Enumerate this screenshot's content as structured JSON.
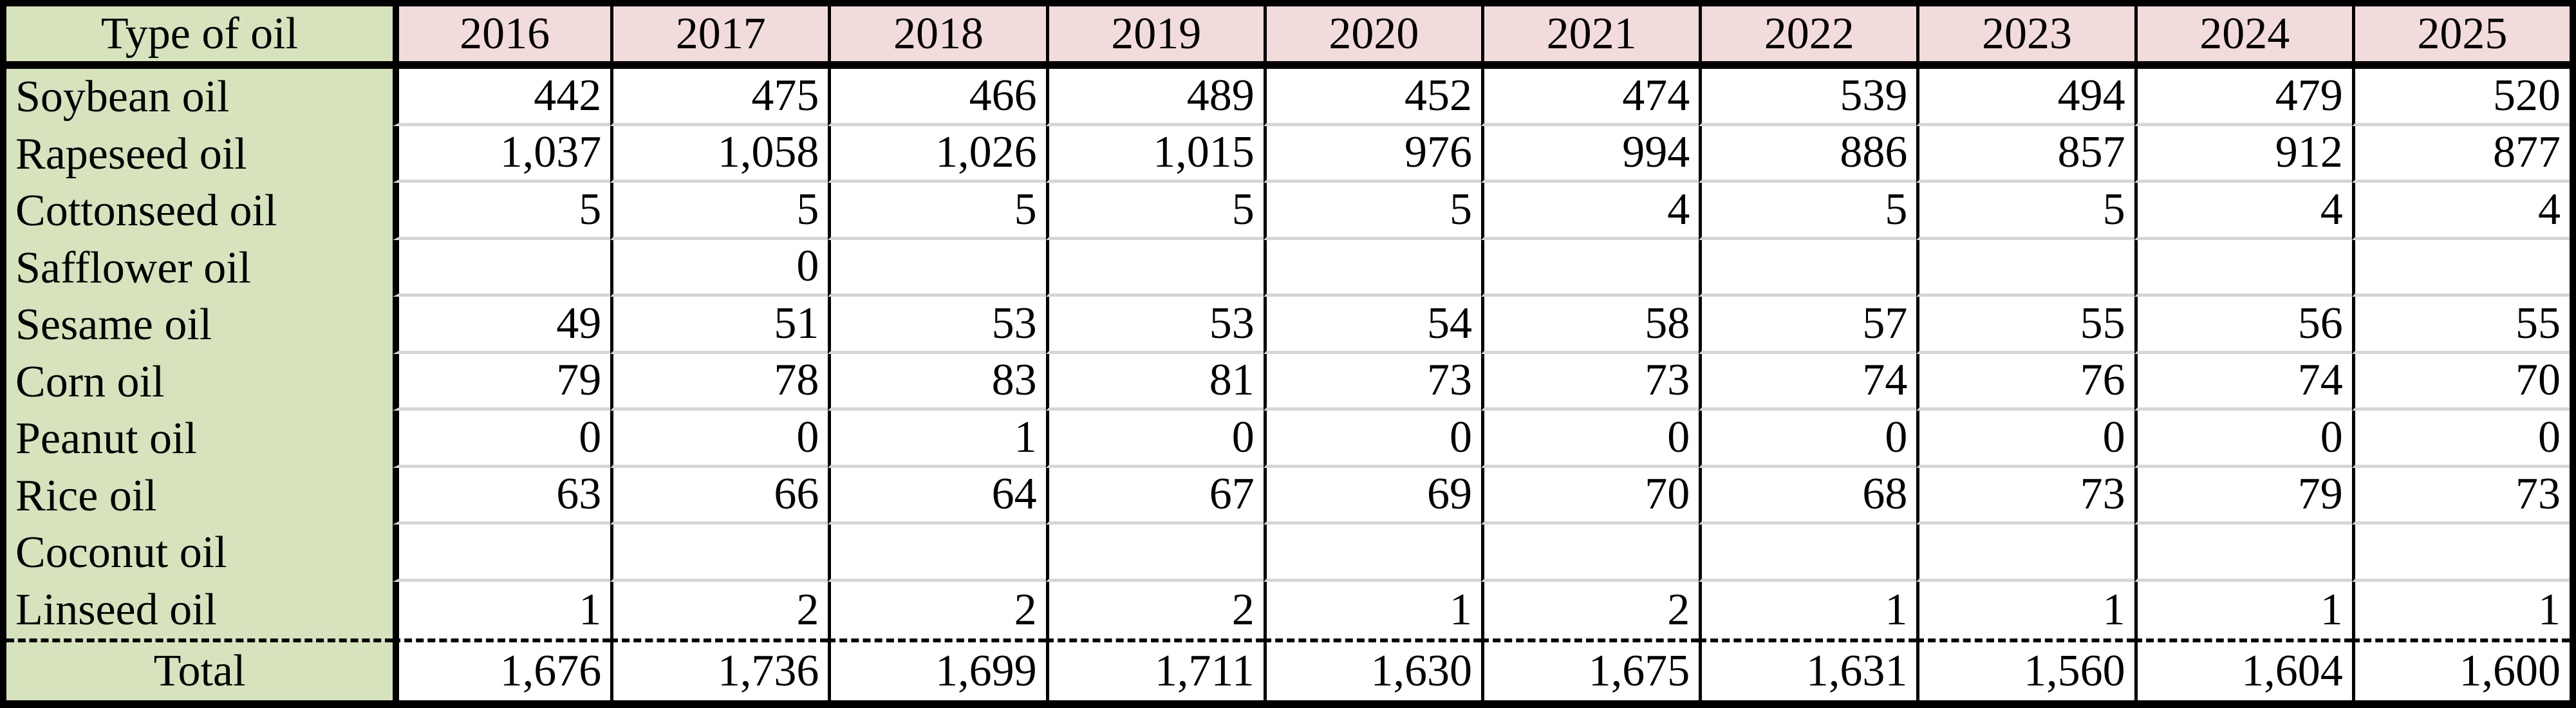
{
  "colors": {
    "oil_col_bg": "#d6e3bc",
    "year_header_bg": "#f2dcdb",
    "row_separator": "#d6d6d6",
    "border": "#000000"
  },
  "chart_data": {
    "type": "table",
    "corner_header": "Type of oil",
    "columns": [
      "2016",
      "2017",
      "2018",
      "2019",
      "2020",
      "2021",
      "2022",
      "2023",
      "2024",
      "2025"
    ],
    "rows": [
      {
        "label": "Soybean oil",
        "values": [
          "442",
          "475",
          "466",
          "489",
          "452",
          "474",
          "539",
          "494",
          "479",
          "520"
        ]
      },
      {
        "label": "Rapeseed oil",
        "values": [
          "1,037",
          "1,058",
          "1,026",
          "1,015",
          "976",
          "994",
          "886",
          "857",
          "912",
          "877"
        ]
      },
      {
        "label": "Cottonseed oil",
        "values": [
          "5",
          "5",
          "5",
          "5",
          "5",
          "4",
          "5",
          "5",
          "4",
          "4"
        ]
      },
      {
        "label": "Safflower oil",
        "values": [
          "",
          "0",
          "",
          "",
          "",
          "",
          "",
          "",
          "",
          ""
        ]
      },
      {
        "label": "Sesame oil",
        "values": [
          "49",
          "51",
          "53",
          "53",
          "54",
          "58",
          "57",
          "55",
          "56",
          "55"
        ]
      },
      {
        "label": "Corn oil",
        "values": [
          "79",
          "78",
          "83",
          "81",
          "73",
          "73",
          "74",
          "76",
          "74",
          "70"
        ]
      },
      {
        "label": "Peanut oil",
        "values": [
          "0",
          "0",
          "1",
          "0",
          "0",
          "0",
          "0",
          "0",
          "0",
          "0"
        ]
      },
      {
        "label": "Rice oil",
        "values": [
          "63",
          "66",
          "64",
          "67",
          "69",
          "70",
          "68",
          "73",
          "79",
          "73"
        ]
      },
      {
        "label": "Coconut oil",
        "values": [
          "",
          "",
          "",
          "",
          "",
          "",
          "",
          "",
          "",
          ""
        ]
      },
      {
        "label": "Linseed oil",
        "values": [
          "1",
          "2",
          "2",
          "2",
          "1",
          "2",
          "1",
          "1",
          "1",
          "1"
        ]
      }
    ],
    "total_row": {
      "label": "Total",
      "values": [
        "1,676",
        "1,736",
        "1,699",
        "1,711",
        "1,630",
        "1,675",
        "1,631",
        "1,560",
        "1,604",
        "1,600"
      ]
    }
  }
}
